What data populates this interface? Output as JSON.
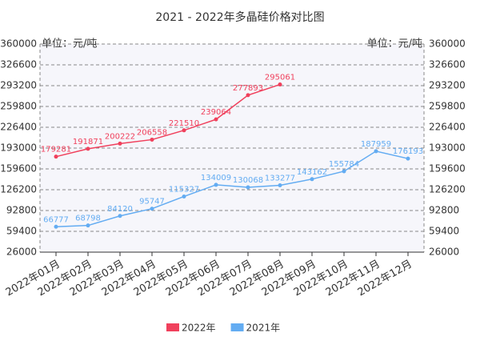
{
  "chart_data": {
    "type": "line",
    "title": "2021 - 2022年多晶硅价格对比图",
    "y_label": "单位：元/吨",
    "categories": [
      "2022年01月",
      "2022年02月",
      "2022年03月",
      "2022年04月",
      "2022年05月",
      "2022年06月",
      "2022年07月",
      "2022年08月",
      "2022年09月",
      "2022年10月",
      "2022年11月",
      "2022年12月"
    ],
    "series": [
      {
        "name": "2022年",
        "color": "#f0405c",
        "values": [
          179281,
          191871,
          200222,
          206558,
          221510,
          239064,
          277893,
          295061,
          null,
          null,
          null,
          null
        ]
      },
      {
        "name": "2021年",
        "color": "#63acf2",
        "values": [
          66777,
          68798,
          84120,
          95747,
          115327,
          134009,
          130068,
          133277,
          143162,
          155784,
          187959,
          176193
        ]
      }
    ],
    "ylim": [
      26000,
      360000
    ],
    "yticks": [
      26000,
      59400,
      92800,
      126200,
      159600,
      193000,
      226400,
      259800,
      293200,
      326600,
      360000
    ],
    "grid": true,
    "legend": "bottom"
  }
}
